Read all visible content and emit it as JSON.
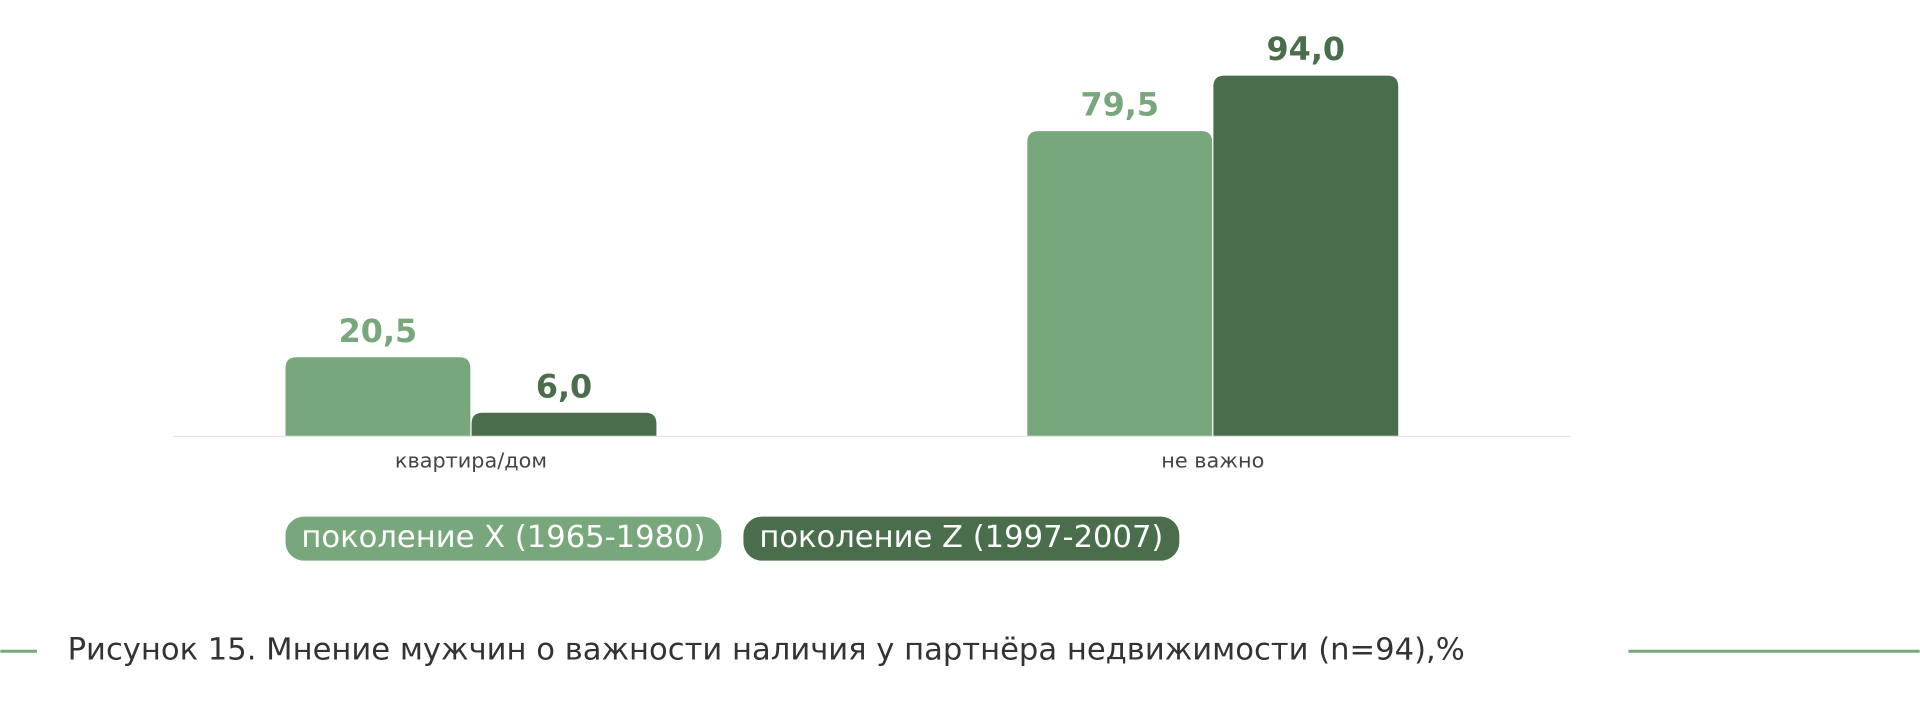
{
  "chart_data": {
    "type": "bar",
    "title": "Рисунок 15. Мнение мужчин о важности наличия у партнёра недвижимости (n=94),%",
    "categories": [
      "квартира/дом",
      "не важно"
    ],
    "series": [
      {
        "name": "поколение X (1965-1980)",
        "color": "#78a77b",
        "values": [
          20.5,
          79.5
        ],
        "value_labels": [
          "20,5",
          "79,5"
        ]
      },
      {
        "name": "поколение Z (1997-2007)",
        "color": "#4a6e4b",
        "values": [
          6.0,
          94.0
        ],
        "value_labels": [
          "6,0",
          "94,0"
        ]
      }
    ],
    "ylim": [
      0,
      100
    ]
  }
}
